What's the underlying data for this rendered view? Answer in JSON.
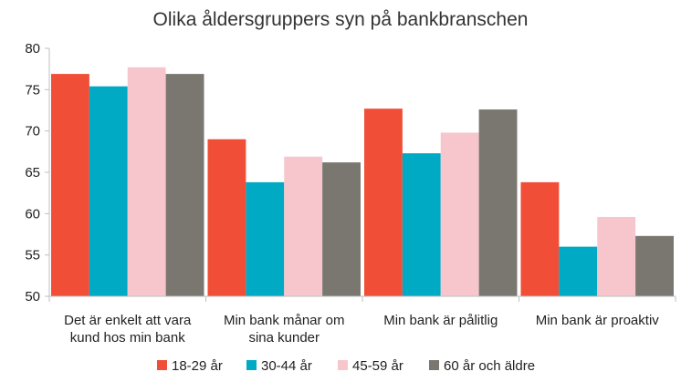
{
  "chart_data": {
    "type": "bar",
    "title": "Olika åldersgruppers syn på bankbranschen",
    "xlabel": "",
    "ylabel": "",
    "ylim": [
      50,
      80
    ],
    "yticks": [
      "50",
      "55",
      "60",
      "65",
      "70",
      "75",
      "80"
    ],
    "grid": false,
    "legend_position": "bottom",
    "categories": [
      [
        "Det är enkelt att vara",
        "kund hos min bank"
      ],
      [
        "Min bank månar om",
        "sina kunder"
      ],
      [
        "Min bank är pålitlig"
      ],
      [
        "Min bank är proaktiv"
      ]
    ],
    "series": [
      {
        "name": "18-29 år",
        "color": "#f04e37",
        "values": [
          76.9,
          69.0,
          72.7,
          63.8
        ]
      },
      {
        "name": "30-44 år",
        "color": "#00a9c4",
        "values": [
          75.4,
          63.8,
          67.3,
          56.0
        ]
      },
      {
        "name": "45-59 år",
        "color": "#f7c6cc",
        "values": [
          77.7,
          66.9,
          69.8,
          59.6
        ]
      },
      {
        "name": "60 år och äldre",
        "color": "#7a7770",
        "values": [
          76.9,
          66.2,
          72.6,
          57.3
        ]
      }
    ]
  }
}
